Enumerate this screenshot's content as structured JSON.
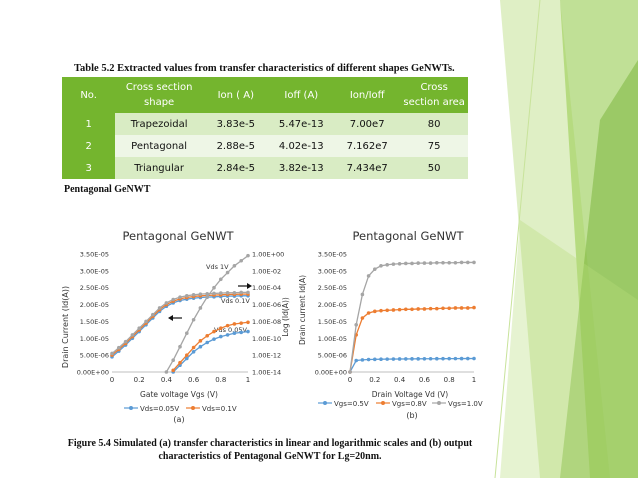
{
  "table": {
    "caption": "Table 5.2 Extracted values from transfer characteristics of different shapes GeNWTs.",
    "headers": [
      "No.",
      "Cross section shape",
      "Ion ( A)",
      "Ioff (A)",
      "Ion/Ioff",
      "Cross section area"
    ],
    "rows": [
      [
        "1",
        "Trapezoidal",
        "3.83e-5",
        "5.47e-13",
        "7.00e7",
        "80"
      ],
      [
        "2",
        "Pentagonal",
        "2.88e-5",
        "4.02e-13",
        "7.162e7",
        "75"
      ],
      [
        "3",
        "Triangular",
        "2.84e-5",
        "3.82e-13",
        "7.434e7",
        "50"
      ]
    ]
  },
  "subheading": "Pentagonal GeNWT",
  "figure_caption": "Figure 5.4 Simulated (a) transfer characteristics in linear and logarithmic scales and (b) output characteristics of Pentagonal GeNWT for Lg=20nm.",
  "chart_data": [
    {
      "type": "line",
      "title": "Pentagonal GeNWT",
      "xlabel": "Gate voltage Vgs (V)",
      "ylabel": "Drain Current (Id(A))",
      "y2label": "Log (Id(A))",
      "panel_label": "(a)",
      "xlim": [
        0,
        1
      ],
      "ylim": [
        0,
        3.5e-05
      ],
      "y2lim_log10": [
        -14,
        0
      ],
      "x_ticks": [
        "0",
        "0.2",
        "0.4",
        "0.6",
        "0.8",
        "1"
      ],
      "y_ticks": [
        "0.00E+00",
        "5.00E-06",
        "1.00E-05",
        "1.50E-05",
        "2.00E-05",
        "2.50E-05",
        "3.00E-05",
        "3.50E-05"
      ],
      "y2_ticks": [
        "1.00E-14",
        "1.00E-12",
        "1.00E-10",
        "1.00E-08",
        "1.00E-06",
        "1.00E-04",
        "1.00E-02",
        "1.00E+00"
      ],
      "annotations": [
        "Vds 1V",
        "Vds 0.1V",
        "Vds 0.05V"
      ],
      "x": [
        0,
        0.05,
        0.1,
        0.15,
        0.2,
        0.25,
        0.3,
        0.35,
        0.4,
        0.45,
        0.5,
        0.55,
        0.6,
        0.65,
        0.7,
        0.75,
        0.8,
        0.85,
        0.9,
        0.95,
        1.0
      ],
      "series": [
        {
          "name": "Vds=0.05V",
          "axis": "left",
          "color": "#5b9bd5",
          "values": [
            4.5e-06,
            6.2e-06,
            8e-06,
            1e-05,
            1.2e-05,
            1.4e-05,
            1.6e-05,
            1.8e-05,
            1.95e-05,
            2.05e-05,
            2.12e-05,
            2.16e-05,
            2.19e-05,
            2.21e-05,
            2.22e-05,
            2.23e-05,
            2.24e-05,
            2.25e-05,
            2.25e-05,
            2.26e-05,
            2.26e-05
          ]
        },
        {
          "name": "Vds=0.1V",
          "axis": "left",
          "color": "#ed7d31",
          "values": [
            5e-06,
            6.7e-06,
            8.5e-06,
            1.05e-05,
            1.25e-05,
            1.45e-05,
            1.65e-05,
            1.85e-05,
            2e-05,
            2.1e-05,
            2.17e-05,
            2.21e-05,
            2.24e-05,
            2.26e-05,
            2.27e-05,
            2.28e-05,
            2.29e-05,
            2.3e-05,
            2.3e-05,
            2.31e-05,
            2.31e-05
          ]
        },
        {
          "name": "",
          "axis": "left",
          "color": "#a5a5a5",
          "values": [
            5.5e-06,
            7.2e-06,
            9e-06,
            1.1e-05,
            1.3e-05,
            1.5e-05,
            1.7e-05,
            1.9e-05,
            2.05e-05,
            2.15e-05,
            2.22e-05,
            2.26e-05,
            2.29e-05,
            2.31e-05,
            2.32e-05,
            2.33e-05,
            2.34e-05,
            2.35e-05,
            2.35e-05,
            2.36e-05,
            2.36e-05
          ]
        },
        {
          "name": "Vds=0.05V",
          "axis": "right",
          "color": "#5b9bd5",
          "values": [
            null,
            null,
            null,
            null,
            null,
            null,
            null,
            null,
            null,
            -14.0,
            -13.2,
            -12.4,
            -11.6,
            -11.0,
            -10.5,
            -10.1,
            -9.8,
            -9.6,
            -9.4,
            -9.3,
            -9.2
          ]
        },
        {
          "name": "Vds=0.1V",
          "axis": "right",
          "color": "#ed7d31",
          "values": [
            null,
            null,
            null,
            null,
            null,
            null,
            null,
            null,
            null,
            -13.8,
            -12.9,
            -12.0,
            -11.1,
            -10.3,
            -9.7,
            -9.2,
            -8.8,
            -8.5,
            -8.3,
            -8.2,
            -8.1
          ]
        },
        {
          "name": "",
          "axis": "right",
          "color": "#a5a5a5",
          "values": [
            null,
            null,
            null,
            null,
            null,
            null,
            null,
            null,
            -14.0,
            -12.6,
            -11.0,
            -9.4,
            -7.8,
            -6.4,
            -5.1,
            -4.0,
            -3.0,
            -2.2,
            -1.4,
            -0.8,
            -0.2
          ]
        }
      ],
      "legend": [
        "Vds=0.05V",
        "Vds=0.1V"
      ],
      "legend_placement": "bottom"
    },
    {
      "type": "line",
      "title": "Pentagonal GeNWT",
      "xlabel": "Drain Voltage Vd (V)",
      "ylabel": "Drain current Id(A)",
      "panel_label": "(b)",
      "xlim": [
        0,
        1
      ],
      "ylim": [
        0,
        3.5e-05
      ],
      "x_ticks": [
        "0",
        "0.2",
        "0.4",
        "0.6",
        "0.8",
        "1"
      ],
      "y_ticks": [
        "0.00E+00",
        "5.00E-06",
        "1.00E-05",
        "1.50E-05",
        "2.00E-05",
        "2.50E-05",
        "3.00E-05",
        "3.50E-05"
      ],
      "x": [
        0,
        0.05,
        0.1,
        0.15,
        0.2,
        0.25,
        0.3,
        0.35,
        0.4,
        0.45,
        0.5,
        0.55,
        0.6,
        0.65,
        0.7,
        0.75,
        0.8,
        0.85,
        0.9,
        0.95,
        1.0
      ],
      "series": [
        {
          "name": "Vgs=0.5V",
          "color": "#5b9bd5",
          "values": [
            0,
            3.4e-06,
            3.6e-06,
            3.7e-06,
            3.75e-06,
            3.8e-06,
            3.82e-06,
            3.84e-06,
            3.86e-06,
            3.88e-06,
            3.9e-06,
            3.91e-06,
            3.92e-06,
            3.93e-06,
            3.94e-06,
            3.95e-06,
            3.96e-06,
            3.97e-06,
            3.98e-06,
            3.99e-06,
            4e-06
          ]
        },
        {
          "name": "Vgs=0.8V",
          "color": "#ed7d31",
          "values": [
            0,
            1.1e-05,
            1.6e-05,
            1.75e-05,
            1.8e-05,
            1.82e-05,
            1.83e-05,
            1.84e-05,
            1.85e-05,
            1.86e-05,
            1.86e-05,
            1.87e-05,
            1.87e-05,
            1.88e-05,
            1.88e-05,
            1.89e-05,
            1.89e-05,
            1.9e-05,
            1.9e-05,
            1.9e-05,
            1.91e-05
          ]
        },
        {
          "name": "Vgs=1.0V",
          "color": "#a5a5a5",
          "values": [
            0,
            1.4e-05,
            2.3e-05,
            2.85e-05,
            3.05e-05,
            3.15e-05,
            3.18e-05,
            3.2e-05,
            3.21e-05,
            3.22e-05,
            3.22e-05,
            3.23e-05,
            3.23e-05,
            3.23e-05,
            3.24e-05,
            3.24e-05,
            3.24e-05,
            3.24e-05,
            3.25e-05,
            3.25e-05,
            3.25e-05
          ]
        }
      ],
      "legend": [
        "Vgs=0.5V",
        "Vgs=0.8V",
        "Vgs=1.0V"
      ],
      "legend_placement": "bottom"
    }
  ]
}
